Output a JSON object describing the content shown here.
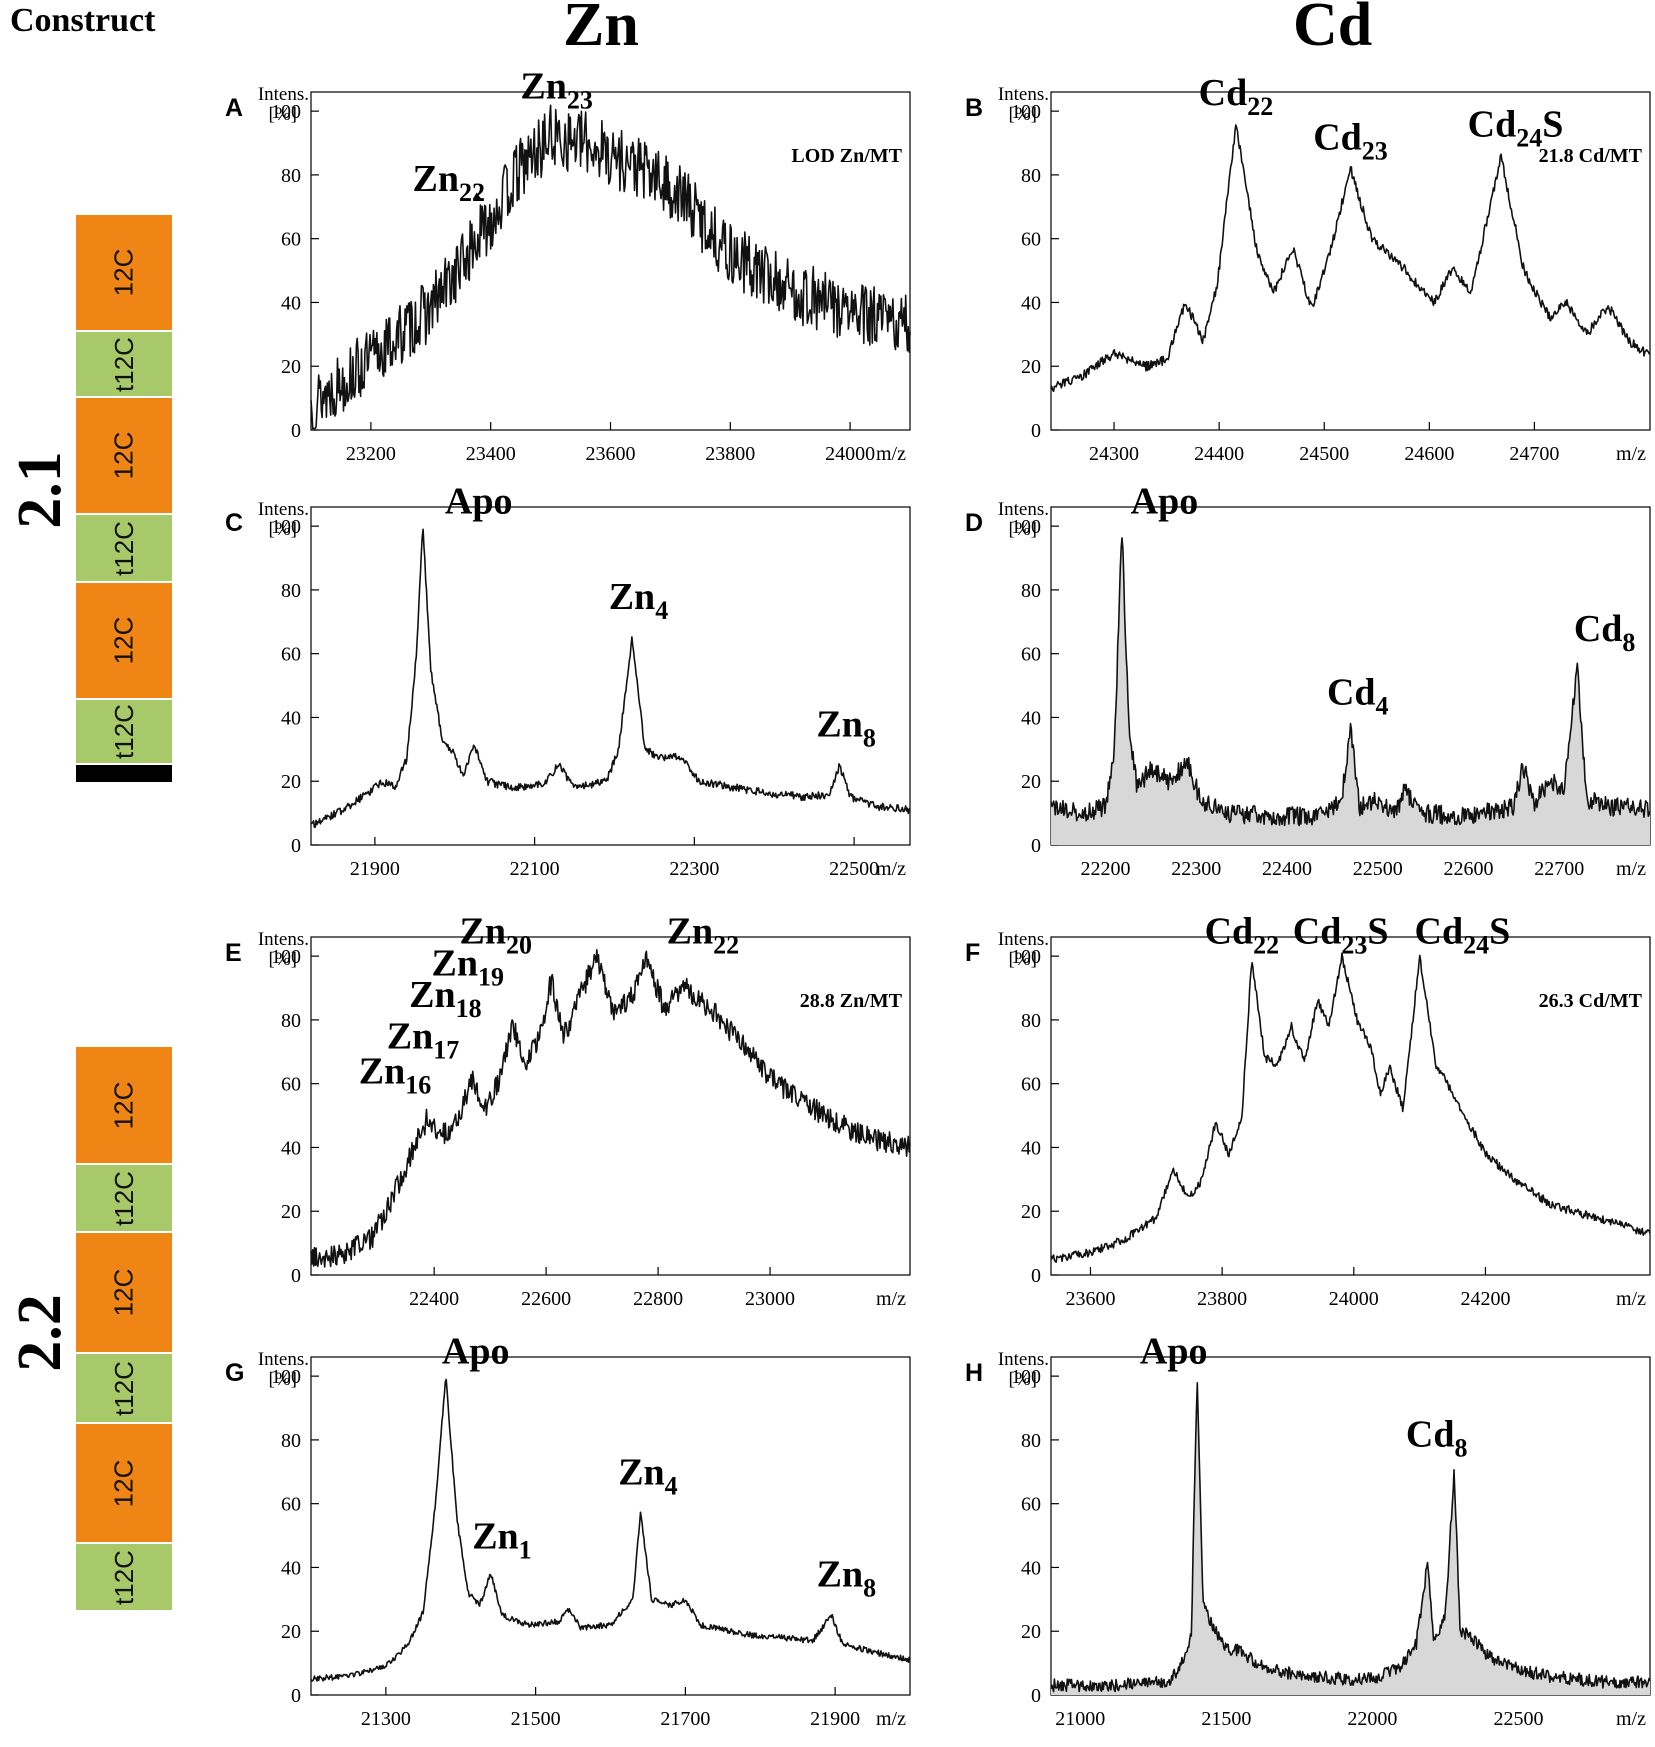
{
  "figure": {
    "construct_header": "Construct",
    "column_headers": [
      "Zn",
      "Cd"
    ],
    "row_labels": [
      "2.1",
      "2.2"
    ],
    "axis_unit": "m/z",
    "intens_label_line1": "Intens.",
    "intens_label_line2": "[%]"
  },
  "constructs": [
    {
      "label": "2.1",
      "blocks": [
        "12C",
        "t12C",
        "12C",
        "t12C",
        "12C",
        "t12C",
        "end"
      ]
    },
    {
      "label": "2.2",
      "blocks": [
        "12C",
        "t12C",
        "12C",
        "t12C",
        "12C",
        "t12C"
      ]
    }
  ],
  "colors": {
    "block_12C": "#ee8514",
    "block_t12C": "#a8c96a",
    "block_end": "#000000",
    "fill": "#d8d8d8"
  },
  "chart_data": [
    {
      "panel": "A",
      "type": "line",
      "column": "Zn",
      "construct": "2.1",
      "xlabel": "m/z",
      "ylabel": "Intens. [%]",
      "xlim": [
        23100,
        24100
      ],
      "ylim": [
        0,
        100
      ],
      "xticks": [
        23200,
        23400,
        23600,
        23800,
        24000
      ],
      "yticks": [
        0,
        20,
        40,
        60,
        80,
        100
      ],
      "noise": 10,
      "fill": false,
      "note": "LOD Zn/MT",
      "points": [
        [
          23100,
          8
        ],
        [
          23200,
          22
        ],
        [
          23300,
          38
        ],
        [
          23380,
          60
        ],
        [
          23450,
          82
        ],
        [
          23500,
          92
        ],
        [
          23560,
          90
        ],
        [
          23650,
          82
        ],
        [
          23720,
          73
        ],
        [
          23800,
          55
        ],
        [
          23900,
          44
        ],
        [
          24000,
          37
        ],
        [
          24100,
          32
        ]
      ],
      "annotations": [
        {
          "base": "Zn",
          "sub": "22",
          "x": 23330,
          "y": 75,
          "arrow_to": [
            23385,
            72
          ]
        },
        {
          "base": "Zn",
          "sub": "23",
          "x": 23510,
          "y": 104
        }
      ]
    },
    {
      "panel": "B",
      "type": "line",
      "column": "Cd",
      "construct": "2.1",
      "xlabel": "m/z",
      "ylabel": "Intens. [%]",
      "xlim": [
        24240,
        24810
      ],
      "ylim": [
        0,
        100
      ],
      "xticks": [
        24300,
        24400,
        24500,
        24600,
        24700
      ],
      "yticks": [
        0,
        20,
        40,
        60,
        80,
        100
      ],
      "noise": 1.5,
      "fill": false,
      "note": "21.8 Cd/MT",
      "points": [
        [
          24240,
          13
        ],
        [
          24270,
          17
        ],
        [
          24300,
          24
        ],
        [
          24330,
          20
        ],
        [
          24350,
          22
        ],
        [
          24368,
          40
        ],
        [
          24385,
          28
        ],
        [
          24398,
          45
        ],
        [
          24416,
          96
        ],
        [
          24436,
          56
        ],
        [
          24452,
          43
        ],
        [
          24470,
          57
        ],
        [
          24488,
          38
        ],
        [
          24505,
          55
        ],
        [
          24525,
          82
        ],
        [
          24545,
          60
        ],
        [
          24570,
          53
        ],
        [
          24590,
          45
        ],
        [
          24605,
          40
        ],
        [
          24622,
          51
        ],
        [
          24640,
          43
        ],
        [
          24668,
          86
        ],
        [
          24690,
          50
        ],
        [
          24715,
          35
        ],
        [
          24730,
          40
        ],
        [
          24750,
          30
        ],
        [
          24770,
          39
        ],
        [
          24790,
          28
        ],
        [
          24810,
          23
        ]
      ],
      "annotations": [
        {
          "base": "Cd",
          "sub": "22",
          "x": 24416,
          "y": 102
        },
        {
          "base": "Cd",
          "sub": "23",
          "x": 24525,
          "y": 88
        },
        {
          "base": "Cd",
          "sub": "24",
          "suffix": "S",
          "x": 24682,
          "y": 92
        }
      ]
    },
    {
      "panel": "C",
      "type": "line",
      "column": "Zn",
      "construct": "2.1",
      "xlabel": "m/z",
      "ylabel": "Intens. [%]",
      "xlim": [
        21820,
        22570
      ],
      "ylim": [
        0,
        100
      ],
      "xticks": [
        21900,
        22100,
        22300,
        22500
      ],
      "yticks": [
        0,
        20,
        40,
        60,
        80,
        100
      ],
      "noise": 1.2,
      "fill": false,
      "note": "",
      "points": [
        [
          21820,
          6
        ],
        [
          21860,
          11
        ],
        [
          21890,
          16
        ],
        [
          21910,
          20
        ],
        [
          21925,
          18
        ],
        [
          21940,
          27
        ],
        [
          21952,
          60
        ],
        [
          21960,
          100
        ],
        [
          21970,
          55
        ],
        [
          21985,
          32
        ],
        [
          21998,
          29
        ],
        [
          22010,
          22
        ],
        [
          22025,
          31
        ],
        [
          22040,
          20
        ],
        [
          22070,
          18
        ],
        [
          22110,
          19
        ],
        [
          22130,
          25
        ],
        [
          22150,
          18
        ],
        [
          22190,
          20
        ],
        [
          22205,
          30
        ],
        [
          22222,
          65
        ],
        [
          22238,
          30
        ],
        [
          22260,
          27
        ],
        [
          22285,
          28
        ],
        [
          22305,
          20
        ],
        [
          22350,
          18
        ],
        [
          22400,
          16
        ],
        [
          22440,
          15
        ],
        [
          22470,
          16
        ],
        [
          22482,
          25
        ],
        [
          22495,
          15
        ],
        [
          22530,
          12
        ],
        [
          22570,
          11
        ]
      ],
      "annotations": [
        {
          "base": "Apo",
          "x": 22030,
          "y": 104
        },
        {
          "base": "Zn",
          "sub": "4",
          "x": 22230,
          "y": 74
        },
        {
          "base": "Zn",
          "sub": "8",
          "x": 22490,
          "y": 34
        }
      ]
    },
    {
      "panel": "D",
      "type": "line",
      "column": "Cd",
      "construct": "2.1",
      "xlabel": "m/z",
      "ylabel": "Intens. [%]",
      "xlim": [
        22140,
        22800
      ],
      "ylim": [
        0,
        100
      ],
      "xticks": [
        22200,
        22300,
        22400,
        22500,
        22600,
        22700
      ],
      "yticks": [
        0,
        20,
        40,
        60,
        80,
        100
      ],
      "noise": 3,
      "fill": true,
      "note": "",
      "points": [
        [
          22140,
          12
        ],
        [
          22180,
          10
        ],
        [
          22200,
          12
        ],
        [
          22210,
          30
        ],
        [
          22218,
          100
        ],
        [
          22226,
          35
        ],
        [
          22235,
          18
        ],
        [
          22250,
          24
        ],
        [
          22270,
          20
        ],
        [
          22290,
          26
        ],
        [
          22305,
          14
        ],
        [
          22330,
          10
        ],
        [
          22380,
          9
        ],
        [
          22440,
          9
        ],
        [
          22460,
          14
        ],
        [
          22470,
          36
        ],
        [
          22480,
          12
        ],
        [
          22500,
          14
        ],
        [
          22520,
          10
        ],
        [
          22530,
          18
        ],
        [
          22545,
          10
        ],
        [
          22600,
          9
        ],
        [
          22650,
          12
        ],
        [
          22660,
          25
        ],
        [
          22672,
          13
        ],
        [
          22690,
          20
        ],
        [
          22705,
          18
        ],
        [
          22720,
          56
        ],
        [
          22730,
          14
        ],
        [
          22760,
          12
        ],
        [
          22800,
          11
        ]
      ],
      "annotations": [
        {
          "base": "Apo",
          "x": 22265,
          "y": 104
        },
        {
          "base": "Cd",
          "sub": "4",
          "x": 22478,
          "y": 44
        },
        {
          "base": "Cd",
          "sub": "8",
          "x": 22750,
          "y": 64
        }
      ]
    },
    {
      "panel": "E",
      "type": "line",
      "column": "Zn",
      "construct": "2.2",
      "xlabel": "m/z",
      "ylabel": "Intens. [%]",
      "xlim": [
        22180,
        23250
      ],
      "ylim": [
        0,
        100
      ],
      "xticks": [
        22400,
        22600,
        22800,
        23000
      ],
      "yticks": [
        0,
        20,
        40,
        60,
        80,
        100
      ],
      "noise": 3.5,
      "fill": false,
      "note": "28.8 Zn/MT",
      "points": [
        [
          22180,
          5
        ],
        [
          22240,
          7
        ],
        [
          22290,
          12
        ],
        [
          22320,
          22
        ],
        [
          22360,
          38
        ],
        [
          22390,
          50
        ],
        [
          22410,
          43
        ],
        [
          22440,
          48
        ],
        [
          22470,
          62
        ],
        [
          22490,
          52
        ],
        [
          22520,
          62
        ],
        [
          22540,
          80
        ],
        [
          22560,
          65
        ],
        [
          22590,
          76
        ],
        [
          22610,
          93
        ],
        [
          22630,
          74
        ],
        [
          22660,
          87
        ],
        [
          22690,
          100
        ],
        [
          22720,
          82
        ],
        [
          22750,
          86
        ],
        [
          22780,
          99
        ],
        [
          22810,
          84
        ],
        [
          22850,
          90
        ],
        [
          22900,
          82
        ],
        [
          22950,
          73
        ],
        [
          23000,
          62
        ],
        [
          23050,
          55
        ],
        [
          23100,
          50
        ],
        [
          23150,
          45
        ],
        [
          23200,
          42
        ],
        [
          23250,
          40
        ]
      ],
      "annotations": [
        {
          "base": "Zn",
          "sub": "16",
          "x": 22330,
          "y": 60
        },
        {
          "base": "Zn",
          "sub": "17",
          "x": 22380,
          "y": 71
        },
        {
          "base": "Zn",
          "sub": "18",
          "x": 22420,
          "y": 84
        },
        {
          "base": "Zn",
          "sub": "19",
          "x": 22460,
          "y": 94
        },
        {
          "base": "Zn",
          "sub": "20",
          "x": 22510,
          "y": 104
        },
        {
          "base": "Zn",
          "sub": "22",
          "x": 22880,
          "y": 104
        }
      ]
    },
    {
      "panel": "F",
      "type": "line",
      "column": "Cd",
      "construct": "2.2",
      "xlabel": "m/z",
      "ylabel": "Intens. [%]",
      "xlim": [
        23540,
        24450
      ],
      "ylim": [
        0,
        100
      ],
      "xticks": [
        23600,
        23800,
        24000,
        24200
      ],
      "yticks": [
        0,
        20,
        40,
        60,
        80,
        100
      ],
      "noise": 1.3,
      "fill": false,
      "note": "26.3 Cd/MT",
      "points": [
        [
          23540,
          5
        ],
        [
          23600,
          7
        ],
        [
          23650,
          11
        ],
        [
          23700,
          18
        ],
        [
          23725,
          33
        ],
        [
          23750,
          24
        ],
        [
          23770,
          30
        ],
        [
          23790,
          48
        ],
        [
          23810,
          38
        ],
        [
          23830,
          50
        ],
        [
          23845,
          99
        ],
        [
          23865,
          68
        ],
        [
          23885,
          66
        ],
        [
          23905,
          78
        ],
        [
          23925,
          67
        ],
        [
          23945,
          86
        ],
        [
          23962,
          78
        ],
        [
          23982,
          100
        ],
        [
          24005,
          80
        ],
        [
          24025,
          72
        ],
        [
          24040,
          57
        ],
        [
          24055,
          65
        ],
        [
          24075,
          52
        ],
        [
          24100,
          100
        ],
        [
          24125,
          66
        ],
        [
          24150,
          57
        ],
        [
          24200,
          38
        ],
        [
          24250,
          29
        ],
        [
          24300,
          22
        ],
        [
          24400,
          16
        ],
        [
          24450,
          13
        ]
      ],
      "annotations": [
        {
          "base": "Cd",
          "sub": "22",
          "x": 23830,
          "y": 104
        },
        {
          "base": "Cd",
          "sub": "23",
          "suffix": "S",
          "x": 23980,
          "y": 104
        },
        {
          "base": "Cd",
          "sub": "24",
          "suffix": "S",
          "x": 24165,
          "y": 104
        }
      ]
    },
    {
      "panel": "G",
      "type": "line",
      "column": "Zn",
      "construct": "2.2",
      "xlabel": "m/z",
      "ylabel": "Intens. [%]",
      "xlim": [
        21200,
        22000
      ],
      "ylim": [
        0,
        100
      ],
      "xticks": [
        21300,
        21500,
        21700,
        21900
      ],
      "yticks": [
        0,
        20,
        40,
        60,
        80,
        100
      ],
      "noise": 0.9,
      "fill": false,
      "note": "",
      "points": [
        [
          21200,
          5
        ],
        [
          21250,
          6
        ],
        [
          21300,
          9
        ],
        [
          21330,
          16
        ],
        [
          21350,
          26
        ],
        [
          21367,
          62
        ],
        [
          21380,
          100
        ],
        [
          21395,
          55
        ],
        [
          21410,
          32
        ],
        [
          21425,
          28
        ],
        [
          21440,
          38
        ],
        [
          21455,
          25
        ],
        [
          21490,
          22
        ],
        [
          21530,
          23
        ],
        [
          21545,
          27
        ],
        [
          21560,
          21
        ],
        [
          21600,
          22
        ],
        [
          21630,
          30
        ],
        [
          21640,
          57
        ],
        [
          21655,
          30
        ],
        [
          21680,
          28
        ],
        [
          21700,
          30
        ],
        [
          21720,
          22
        ],
        [
          21780,
          19
        ],
        [
          21830,
          18
        ],
        [
          21870,
          17
        ],
        [
          21895,
          25
        ],
        [
          21910,
          16
        ],
        [
          21960,
          13
        ],
        [
          22000,
          11
        ]
      ],
      "annotations": [
        {
          "base": "Apo",
          "x": 21420,
          "y": 104
        },
        {
          "base": "Zn",
          "sub": "1",
          "x": 21455,
          "y": 46
        },
        {
          "base": "Zn",
          "sub": "4",
          "x": 21650,
          "y": 66
        },
        {
          "base": "Zn",
          "sub": "8",
          "x": 21915,
          "y": 34
        }
      ]
    },
    {
      "panel": "H",
      "type": "line",
      "column": "Cd",
      "construct": "2.2",
      "xlabel": "m/z",
      "ylabel": "Intens. [%]",
      "xlim": [
        20900,
        22950
      ],
      "ylim": [
        0,
        100
      ],
      "xticks": [
        21000,
        21500,
        22000,
        22500
      ],
      "yticks": [
        0,
        20,
        40,
        60,
        80,
        100
      ],
      "noise": 2,
      "fill": true,
      "note": "",
      "points": [
        [
          20900,
          3
        ],
        [
          21100,
          3
        ],
        [
          21300,
          4
        ],
        [
          21350,
          10
        ],
        [
          21380,
          18
        ],
        [
          21400,
          100
        ],
        [
          21420,
          30
        ],
        [
          21450,
          22
        ],
        [
          21500,
          14
        ],
        [
          21550,
          14
        ],
        [
          21600,
          10
        ],
        [
          21700,
          7
        ],
        [
          21800,
          6
        ],
        [
          21900,
          5
        ],
        [
          22000,
          5
        ],
        [
          22100,
          9
        ],
        [
          22150,
          16
        ],
        [
          22190,
          42
        ],
        [
          22210,
          16
        ],
        [
          22250,
          26
        ],
        [
          22280,
          70
        ],
        [
          22300,
          20
        ],
        [
          22340,
          18
        ],
        [
          22400,
          12
        ],
        [
          22500,
          8
        ],
        [
          22600,
          6
        ],
        [
          22700,
          5
        ],
        [
          22800,
          4
        ],
        [
          22950,
          4
        ]
      ],
      "annotations": [
        {
          "base": "Apo",
          "x": 21320,
          "y": 104
        },
        {
          "base": "Cd",
          "sub": "8",
          "x": 22220,
          "y": 78
        }
      ]
    }
  ]
}
